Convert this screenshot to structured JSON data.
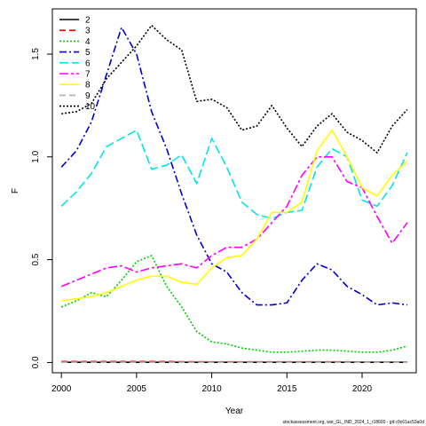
{
  "chart_data": {
    "type": "line",
    "title": "",
    "xlabel": "Year",
    "ylabel": "F",
    "xlim": [
      1999.4,
      2023.6
    ],
    "ylim": [
      -0.05,
      1.72
    ],
    "x_ticks": [
      2000,
      2005,
      2010,
      2015,
      2020
    ],
    "y_ticks": [
      0.0,
      0.5,
      1.0,
      1.5
    ],
    "y_tick_labels": [
      "0.0",
      "0.5",
      "1.0",
      "1.5"
    ],
    "legend_position": "top-left",
    "x": [
      2000,
      2001,
      2002,
      2003,
      2004,
      2005,
      2006,
      2007,
      2008,
      2009,
      2010,
      2011,
      2012,
      2013,
      2014,
      2015,
      2016,
      2017,
      2018,
      2019,
      2020,
      2021,
      2022,
      2023
    ],
    "series": [
      {
        "name": "2",
        "color": "#000000",
        "dash": "",
        "values": [
          0.001,
          0.001,
          0.001,
          0.001,
          0.001,
          0.001,
          0.001,
          0.001,
          0.001,
          0.001,
          0.001,
          0.001,
          0.001,
          0.001,
          0.001,
          0.001,
          0.001,
          0.001,
          0.001,
          0.001,
          0.001,
          0.001,
          0.001,
          0.001
        ]
      },
      {
        "name": "3",
        "color": "#ff0000",
        "dash": "7,4",
        "values": [
          0.005,
          0.005,
          0.005,
          0.005,
          0.005,
          0.005,
          0.005,
          0.005,
          0.004,
          0.004,
          0.003,
          0.003,
          0.003,
          0.003,
          0.003,
          0.003,
          0.003,
          0.003,
          0.003,
          0.003,
          0.002,
          0.002,
          0.002,
          0.002
        ]
      },
      {
        "name": "4",
        "color": "#00cd00",
        "dash": "2,2",
        "values": [
          0.27,
          0.3,
          0.34,
          0.32,
          0.4,
          0.49,
          0.52,
          0.37,
          0.27,
          0.15,
          0.1,
          0.09,
          0.07,
          0.06,
          0.05,
          0.05,
          0.055,
          0.06,
          0.06,
          0.055,
          0.05,
          0.05,
          0.06,
          0.08
        ]
      },
      {
        "name": "5",
        "color": "#0000cd",
        "dash": "8,3,2,3",
        "values": [
          0.95,
          1.03,
          1.17,
          1.4,
          1.63,
          1.5,
          1.22,
          1.04,
          0.82,
          0.62,
          0.48,
          0.44,
          0.34,
          0.28,
          0.28,
          0.29,
          0.4,
          0.48,
          0.45,
          0.37,
          0.33,
          0.28,
          0.29,
          0.28
        ]
      },
      {
        "name": "6",
        "color": "#00e5ee",
        "dash": "10,4",
        "values": [
          0.76,
          0.83,
          0.92,
          1.05,
          1.09,
          1.13,
          0.94,
          0.96,
          1.01,
          0.87,
          1.09,
          0.95,
          0.78,
          0.72,
          0.7,
          0.73,
          0.74,
          0.95,
          1.04,
          1.0,
          0.79,
          0.76,
          0.86,
          1.02
        ]
      },
      {
        "name": "7",
        "color": "#ff00ff",
        "dash": "10,3,3,3",
        "values": [
          0.37,
          0.4,
          0.43,
          0.46,
          0.47,
          0.44,
          0.46,
          0.47,
          0.48,
          0.46,
          0.52,
          0.56,
          0.56,
          0.6,
          0.68,
          0.76,
          0.91,
          1.0,
          1.0,
          0.88,
          0.85,
          0.71,
          0.58,
          0.68
        ]
      },
      {
        "name": "8",
        "color": "#ffff00",
        "dash": "",
        "values": [
          0.3,
          0.31,
          0.32,
          0.34,
          0.37,
          0.4,
          0.42,
          0.42,
          0.39,
          0.38,
          0.46,
          0.51,
          0.52,
          0.6,
          0.73,
          0.73,
          0.78,
          1.03,
          1.13,
          1.0,
          0.85,
          0.81,
          0.91,
          0.98
        ]
      },
      {
        "name": "9",
        "color": "#b3b3b3",
        "dash": "7,4",
        "values": [
          0.001,
          0.001,
          0.001,
          0.001,
          0.001,
          0.001,
          0.001,
          0.001,
          0.001,
          0.001,
          0.001,
          0.001,
          0.001,
          0.001,
          0.001,
          0.001,
          0.001,
          0.001,
          0.001,
          0.001,
          0.001,
          0.001,
          0.001,
          0.001
        ]
      },
      {
        "name": "10",
        "color": "#000000",
        "dash": "2,2",
        "values": [
          1.21,
          1.22,
          1.26,
          1.38,
          1.46,
          1.54,
          1.64,
          1.57,
          1.52,
          1.27,
          1.28,
          1.24,
          1.13,
          1.15,
          1.25,
          1.14,
          1.05,
          1.15,
          1.21,
          1.12,
          1.08,
          1.02,
          1.15,
          1.23
        ]
      }
    ]
  },
  "footer": "stockassessment.org, wst_GL_IND_2024_1_r18600 - git:c9c61ac53a0d"
}
